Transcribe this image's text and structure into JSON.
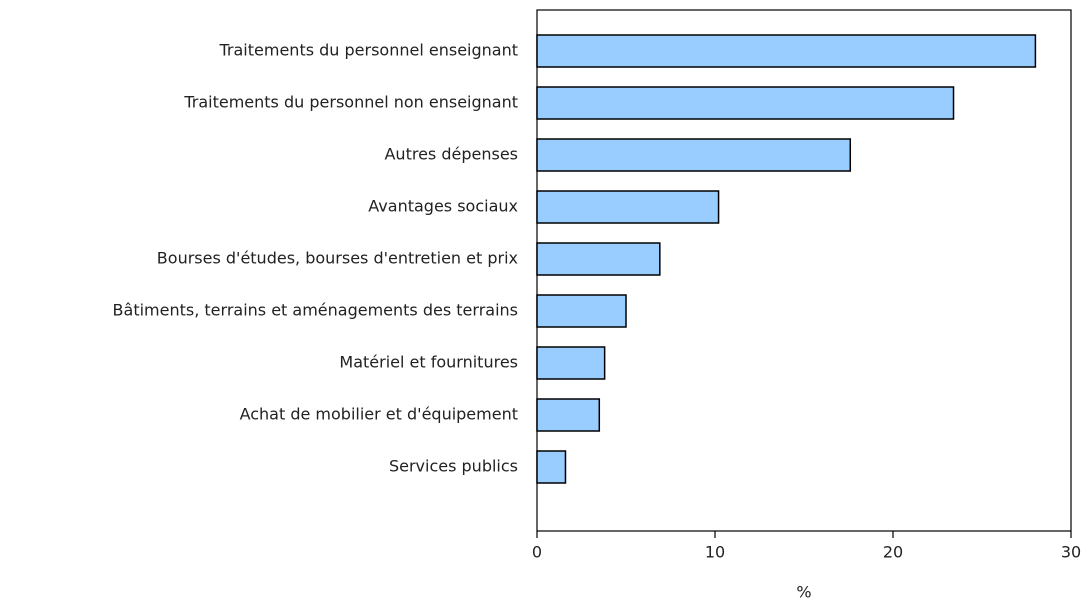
{
  "chart_data": {
    "type": "bar",
    "orientation": "horizontal",
    "categories": [
      "Traitements du personnel enseignant",
      "Traitements du personnel non enseignant",
      "Autres dépenses",
      "Avantages sociaux",
      "Bourses d'études, bourses d'entretien et prix",
      "Bâtiments, terrains et aménagements des terrains",
      "Matériel et fournitures",
      "Achat de mobilier et d'équipement",
      "Services publics"
    ],
    "values": [
      28.0,
      23.4,
      17.6,
      10.2,
      6.9,
      5.0,
      3.8,
      3.5,
      1.6
    ],
    "color": "#99ccff",
    "xlabel": "%",
    "xlim": [
      0,
      30
    ],
    "xticks": [
      0,
      10,
      20,
      30
    ],
    "grid": false
  }
}
